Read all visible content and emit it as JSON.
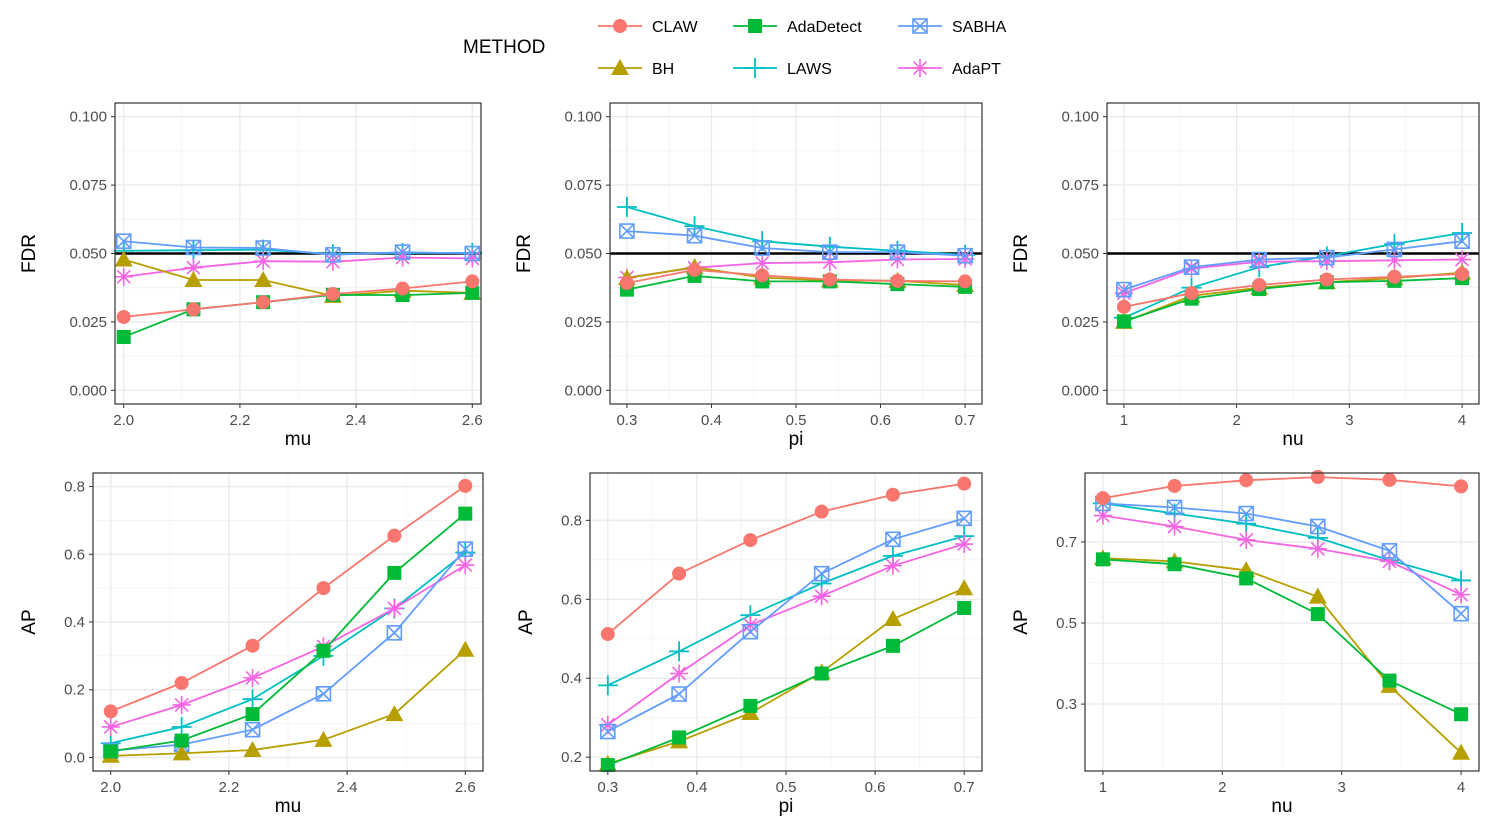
{
  "legend": {
    "title": "METHOD",
    "items": [
      {
        "name": "CLAW",
        "color": "#F8766D",
        "marker": "circle"
      },
      {
        "name": "BH",
        "color": "#B79F00",
        "marker": "triangle"
      },
      {
        "name": "AdaDetect",
        "color": "#00BA38",
        "marker": "square"
      },
      {
        "name": "LAWS",
        "color": "#00BFC4",
        "marker": "plus"
      },
      {
        "name": "SABHA",
        "color": "#619CFF",
        "marker": "boxx"
      },
      {
        "name": "AdaPT",
        "color": "#F564E3",
        "marker": "asterisk"
      }
    ]
  },
  "chart_data": [
    {
      "type": "line",
      "xlabel": "mu",
      "ylabel": "FDR",
      "xlim": [
        1.985,
        2.615
      ],
      "ylim": [
        -0.005,
        0.105
      ],
      "xticks": [
        "2.0",
        "2.2",
        "2.4",
        "2.6"
      ],
      "xtick_values": [
        2.0,
        2.2,
        2.4,
        2.6
      ],
      "yticks": [
        "0.000",
        "0.025",
        "0.050",
        "0.075",
        "0.100"
      ],
      "ytick_values": [
        0,
        0.025,
        0.05,
        0.075,
        0.1
      ],
      "hline": 0.05,
      "x": [
        2.0,
        2.12,
        2.24,
        2.36,
        2.48,
        2.6
      ],
      "series": [
        {
          "name": "CLAW",
          "values": [
            0.0268,
            0.0296,
            0.0322,
            0.0352,
            0.0372,
            0.0398
          ]
        },
        {
          "name": "BH",
          "values": [
            0.0478,
            0.0403,
            0.0403,
            0.0345,
            0.0364,
            0.0356
          ]
        },
        {
          "name": "AdaDetect",
          "values": [
            0.0195,
            0.0296,
            0.0322,
            0.0349,
            0.0348,
            0.0356
          ]
        },
        {
          "name": "LAWS",
          "values": [
            0.051,
            0.0512,
            0.0514,
            0.0498,
            0.0502,
            0.0502
          ]
        },
        {
          "name": "SABHA",
          "values": [
            0.0545,
            0.0522,
            0.052,
            0.0495,
            0.0505,
            0.05
          ]
        },
        {
          "name": "AdaPT",
          "values": [
            0.0415,
            0.0448,
            0.0472,
            0.047,
            0.0485,
            0.0482
          ]
        }
      ]
    },
    {
      "type": "line",
      "xlabel": "pi",
      "ylabel": "FDR",
      "xlim": [
        0.28,
        0.72
      ],
      "ylim": [
        -0.005,
        0.105
      ],
      "xticks": [
        "0.3",
        "0.4",
        "0.5",
        "0.6",
        "0.7"
      ],
      "xtick_values": [
        0.3,
        0.4,
        0.5,
        0.6,
        0.7
      ],
      "yticks": [
        "0.000",
        "0.025",
        "0.050",
        "0.075",
        "0.100"
      ],
      "ytick_values": [
        0,
        0.025,
        0.05,
        0.075,
        0.1
      ],
      "hline": 0.05,
      "x": [
        0.3,
        0.38,
        0.46,
        0.54,
        0.62,
        0.7
      ],
      "series": [
        {
          "name": "CLAW",
          "values": [
            0.0392,
            0.044,
            0.042,
            0.0405,
            0.04,
            0.0398
          ]
        },
        {
          "name": "BH",
          "values": [
            0.041,
            0.045,
            0.0412,
            0.0402,
            0.04,
            0.0385
          ]
        },
        {
          "name": "AdaDetect",
          "values": [
            0.0368,
            0.0418,
            0.0398,
            0.0398,
            0.0388,
            0.0378
          ]
        },
        {
          "name": "LAWS",
          "values": [
            0.067,
            0.06,
            0.0545,
            0.0525,
            0.051,
            0.0495
          ]
        },
        {
          "name": "SABHA",
          "values": [
            0.0582,
            0.0565,
            0.052,
            0.0505,
            0.0505,
            0.0492
          ]
        },
        {
          "name": "AdaPT",
          "values": [
            0.0412,
            0.0448,
            0.0465,
            0.0468,
            0.0478,
            0.048
          ]
        }
      ]
    },
    {
      "type": "line",
      "xlabel": "nu",
      "ylabel": "FDR",
      "xlim": [
        0.85,
        4.15
      ],
      "ylim": [
        -0.005,
        0.105
      ],
      "xticks": [
        "1",
        "2",
        "3",
        "4"
      ],
      "xtick_values": [
        1,
        2,
        3,
        4
      ],
      "yticks": [
        "0.000",
        "0.025",
        "0.050",
        "0.075",
        "0.100"
      ],
      "ytick_values": [
        0,
        0.025,
        0.05,
        0.075,
        0.1
      ],
      "hline": 0.05,
      "x": [
        1.0,
        1.6,
        2.2,
        2.8,
        3.4,
        4.0
      ],
      "series": [
        {
          "name": "CLAW",
          "values": [
            0.0305,
            0.0355,
            0.0385,
            0.0405,
            0.0415,
            0.0425
          ]
        },
        {
          "name": "BH",
          "values": [
            0.025,
            0.0345,
            0.0375,
            0.0395,
            0.041,
            0.043
          ]
        },
        {
          "name": "AdaDetect",
          "values": [
            0.0252,
            0.0335,
            0.037,
            0.0395,
            0.04,
            0.041
          ]
        },
        {
          "name": "LAWS",
          "values": [
            0.0265,
            0.0375,
            0.045,
            0.049,
            0.0535,
            0.0575
          ]
        },
        {
          "name": "SABHA",
          "values": [
            0.0368,
            0.045,
            0.0478,
            0.0485,
            0.0515,
            0.0545
          ]
        },
        {
          "name": "AdaPT",
          "values": [
            0.0355,
            0.0445,
            0.047,
            0.0472,
            0.0475,
            0.0478
          ]
        }
      ]
    },
    {
      "type": "line",
      "xlabel": "mu",
      "ylabel": "AP",
      "xlim": [
        1.97,
        2.63
      ],
      "ylim": [
        -0.04,
        0.84
      ],
      "xticks": [
        "2.0",
        "2.2",
        "2.4",
        "2.6"
      ],
      "xtick_values": [
        2.0,
        2.2,
        2.4,
        2.6
      ],
      "yticks": [
        "0.0",
        "0.2",
        "0.4",
        "0.6",
        "0.8"
      ],
      "ytick_values": [
        0,
        0.2,
        0.4,
        0.6,
        0.8
      ],
      "x": [
        2.0,
        2.12,
        2.24,
        2.36,
        2.48,
        2.6
      ],
      "series": [
        {
          "name": "CLAW",
          "values": [
            0.136,
            0.22,
            0.33,
            0.5,
            0.655,
            0.802
          ]
        },
        {
          "name": "BH",
          "values": [
            0.005,
            0.012,
            0.022,
            0.052,
            0.128,
            0.318
          ]
        },
        {
          "name": "AdaDetect",
          "values": [
            0.018,
            0.05,
            0.128,
            0.315,
            0.545,
            0.72
          ]
        },
        {
          "name": "LAWS",
          "values": [
            0.042,
            0.09,
            0.172,
            0.3,
            0.44,
            0.605
          ]
        },
        {
          "name": "SABHA",
          "values": [
            0.02,
            0.038,
            0.082,
            0.188,
            0.368,
            0.615
          ]
        },
        {
          "name": "AdaPT",
          "values": [
            0.09,
            0.155,
            0.235,
            0.328,
            0.44,
            0.568
          ]
        }
      ]
    },
    {
      "type": "line",
      "xlabel": "pi",
      "ylabel": "AP",
      "xlim": [
        0.28,
        0.72
      ],
      "ylim": [
        0.165,
        0.92
      ],
      "xticks": [
        "0.3",
        "0.4",
        "0.5",
        "0.6",
        "0.7"
      ],
      "xtick_values": [
        0.3,
        0.4,
        0.5,
        0.6,
        0.7
      ],
      "yticks": [
        "0.2",
        "0.4",
        "0.6",
        "0.8"
      ],
      "ytick_values": [
        0.2,
        0.4,
        0.6,
        0.8
      ],
      "x": [
        0.3,
        0.38,
        0.46,
        0.54,
        0.62,
        0.7
      ],
      "series": [
        {
          "name": "CLAW",
          "values": [
            0.512,
            0.665,
            0.75,
            0.822,
            0.865,
            0.893
          ]
        },
        {
          "name": "BH",
          "values": [
            0.183,
            0.24,
            0.312,
            0.415,
            0.55,
            0.628
          ]
        },
        {
          "name": "AdaDetect",
          "values": [
            0.18,
            0.25,
            0.33,
            0.412,
            0.482,
            0.578
          ]
        },
        {
          "name": "LAWS",
          "values": [
            0.382,
            0.468,
            0.56,
            0.64,
            0.71,
            0.76
          ]
        },
        {
          "name": "SABHA",
          "values": [
            0.265,
            0.36,
            0.518,
            0.665,
            0.752,
            0.805
          ]
        },
        {
          "name": "AdaPT",
          "values": [
            0.282,
            0.412,
            0.535,
            0.608,
            0.685,
            0.74
          ]
        }
      ]
    },
    {
      "type": "line",
      "xlabel": "nu",
      "ylabel": "AP",
      "xlim": [
        0.85,
        4.15
      ],
      "ylim": [
        0.135,
        0.87
      ],
      "xticks": [
        "1",
        "2",
        "3",
        "4"
      ],
      "xtick_values": [
        1,
        2,
        3,
        4
      ],
      "yticks": [
        "0.3",
        "0.5",
        "0.7"
      ],
      "ytick_values": [
        0.3,
        0.5,
        0.7
      ],
      "x": [
        1.0,
        1.6,
        2.2,
        2.8,
        3.4,
        4.0
      ],
      "series": [
        {
          "name": "CLAW",
          "values": [
            0.808,
            0.838,
            0.852,
            0.86,
            0.853,
            0.837
          ]
        },
        {
          "name": "BH",
          "values": [
            0.66,
            0.652,
            0.63,
            0.565,
            0.345,
            0.18
          ]
        },
        {
          "name": "AdaDetect",
          "values": [
            0.657,
            0.645,
            0.61,
            0.522,
            0.358,
            0.275
          ]
        },
        {
          "name": "LAWS",
          "values": [
            0.795,
            0.77,
            0.745,
            0.71,
            0.655,
            0.605
          ]
        },
        {
          "name": "SABHA",
          "values": [
            0.795,
            0.785,
            0.77,
            0.738,
            0.678,
            0.523
          ]
        },
        {
          "name": "AdaPT",
          "values": [
            0.765,
            0.738,
            0.705,
            0.683,
            0.652,
            0.57
          ]
        }
      ]
    }
  ]
}
